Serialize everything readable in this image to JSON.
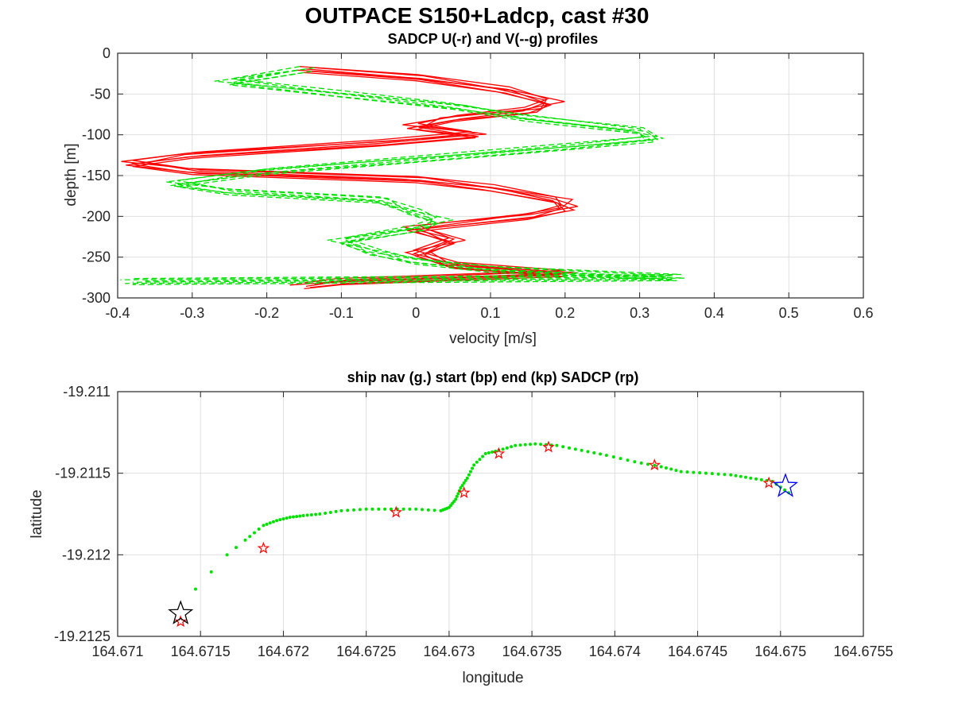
{
  "figure": {
    "title": "OUTPACE S150+Ladcp, cast #30"
  },
  "chart_data": [
    {
      "type": "line",
      "title": "SADCP U(-r) and V(--g) profiles",
      "xlabel": "velocity [m/s]",
      "ylabel": "depth [m]",
      "xlim": [
        -0.4,
        0.6
      ],
      "ylim": [
        -300,
        0
      ],
      "xticks": [
        "-0.4",
        "-0.3",
        "-0.2",
        "-0.1",
        "0",
        "0.1",
        "0.2",
        "0.3",
        "0.4",
        "0.5",
        "0.6"
      ],
      "yticks": [
        "0",
        "-50",
        "-100",
        "-150",
        "-200",
        "-250",
        "-300"
      ],
      "grid": true,
      "series": [
        {
          "color": "#ff0000",
          "style": "solid",
          "depth": [
            -20,
            -30,
            -45,
            -60,
            -70,
            -80,
            -90,
            -100,
            -110,
            -125,
            -135,
            -145,
            -155,
            -165,
            -180,
            -190,
            -200,
            -215,
            -230,
            -245,
            -260,
            -270,
            -280,
            -285
          ],
          "values": [
            -0.15,
            0.0,
            0.12,
            0.18,
            0.15,
            0.05,
            0.0,
            0.08,
            -0.05,
            -0.3,
            -0.38,
            -0.3,
            0.0,
            0.1,
            0.19,
            0.2,
            0.15,
            0.0,
            0.05,
            0.0,
            0.05,
            0.2,
            -0.1,
            -0.15
          ]
        },
        {
          "color": "#00e000",
          "style": "dashed",
          "depth": [
            -20,
            -35,
            -50,
            -65,
            -80,
            -95,
            -105,
            -115,
            -130,
            -145,
            -160,
            -170,
            -180,
            -195,
            -205,
            -215,
            -230,
            -245,
            -255,
            -265,
            -275,
            -280
          ],
          "values": [
            -0.15,
            -0.25,
            -0.1,
            0.05,
            0.15,
            0.3,
            0.32,
            0.2,
            0.0,
            -0.2,
            -0.32,
            -0.25,
            -0.05,
            0.0,
            0.03,
            0.0,
            -0.1,
            -0.05,
            0.0,
            0.1,
            0.35,
            -0.38
          ]
        }
      ]
    },
    {
      "type": "scatter",
      "title": "ship nav (g.) start (bp) end (kp) SADCP (rp)",
      "xlabel": "longitude",
      "ylabel": "latitude",
      "xlim": [
        164.671,
        164.6755
      ],
      "ylim": [
        -19.2125,
        -19.211
      ],
      "xticks": [
        "164.671",
        "164.6715",
        "164.672",
        "164.6725",
        "164.673",
        "164.6735",
        "164.674",
        "164.6745",
        "164.675",
        "164.6755"
      ],
      "yticks": [
        "-19.211",
        "-19.2115",
        "-19.212",
        "-19.2125"
      ],
      "grid": true,
      "nav": {
        "color": "#00e000",
        "lon": [
          164.67147,
          164.67166,
          164.67177,
          164.67188,
          164.67196,
          164.67204,
          164.67212,
          164.67222,
          164.67235,
          164.6725,
          164.67265,
          164.6728,
          164.67295,
          164.673,
          164.67304,
          164.67307,
          164.67311,
          164.67315,
          164.67322,
          164.6733,
          164.6734,
          164.67352,
          164.67365,
          164.6738,
          164.67395,
          164.67412,
          164.67428,
          164.6744,
          164.67455,
          164.6747,
          164.67482,
          164.67495,
          164.67505
        ],
        "lat": [
          -19.21221,
          -19.212,
          -19.21191,
          -19.21182,
          -19.21179,
          -19.21177,
          -19.21176,
          -19.21175,
          -19.21173,
          -19.21172,
          -19.21172,
          -19.21172,
          -19.21173,
          -19.21171,
          -19.21166,
          -19.21159,
          -19.21153,
          -19.21145,
          -19.21138,
          -19.21136,
          -19.21133,
          -19.21132,
          -19.21133,
          -19.21136,
          -19.21139,
          -19.21143,
          -19.21146,
          -19.21149,
          -19.2115,
          -19.21151,
          -19.21153,
          -19.21155,
          -19.21162
        ]
      },
      "sadcp": {
        "color": "#ff0000",
        "lon": [
          164.67138,
          164.67188,
          164.67268,
          164.67309,
          164.6733,
          164.6736,
          164.67424,
          164.67493
        ],
        "lat": [
          -19.21241,
          -19.21196,
          -19.21174,
          -19.21162,
          -19.21138,
          -19.21134,
          -19.21145,
          -19.21156
        ]
      },
      "start": {
        "color": "#0000ff",
        "lon": 164.67503,
        "lat": -19.21158
      },
      "end": {
        "color": "#000000",
        "lon": 164.67138,
        "lat": -19.21236
      }
    }
  ]
}
